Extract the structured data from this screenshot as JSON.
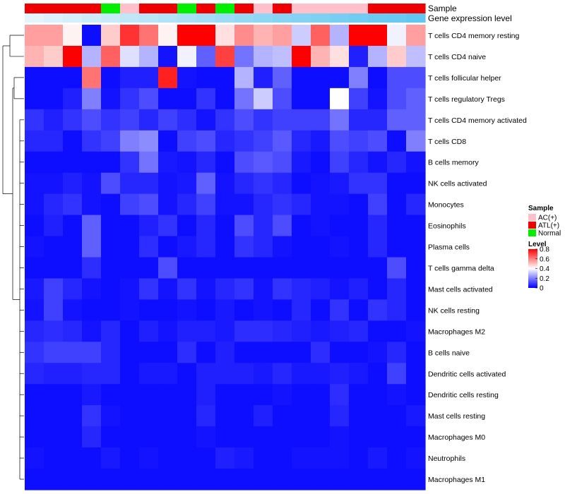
{
  "chart_data": {
    "type": "heatmap",
    "title": "",
    "annotations": {
      "sample_label": "Sample",
      "expression_label": "Gene expression level",
      "sample_codes": [
        1,
        1,
        1,
        1,
        2,
        0,
        1,
        1,
        2,
        1,
        2,
        1,
        0,
        1,
        0,
        0,
        0,
        0,
        1,
        1,
        1
      ],
      "expression_levels": [
        0.05,
        0.1,
        0.15,
        0.2,
        0.25,
        0.3,
        0.35,
        0.4,
        0.45,
        0.5,
        0.55,
        0.6,
        0.65,
        0.7,
        0.72,
        0.75,
        0.8,
        0.85,
        0.88,
        0.9,
        0.95
      ]
    },
    "sample_legend": {
      "title": "Sample",
      "entries": [
        "AC(+)",
        "ATL(+)",
        "Normal"
      ],
      "colors": [
        "#ffc0cb",
        "#ee0000",
        "#00ee00"
      ]
    },
    "level_legend": {
      "title": "Level",
      "ticks": [
        "0.8",
        "0.6",
        "0.4",
        "0.2",
        "0"
      ],
      "tick_values": [
        0.8,
        0.6,
        0.4,
        0.2,
        0.0
      ],
      "range": [
        0,
        0.8
      ],
      "colors": {
        "low": "#0000ff",
        "mid": "#ffffff",
        "high": "#ff0000"
      }
    },
    "expression_colors": {
      "low": "#eaf6fc",
      "high": "#5bc4ef"
    },
    "rows": [
      "T cells CD4 memory resting",
      "T cells CD4 naive",
      "T cells follicular helper",
      "T cells regulatory  Tregs",
      "T cells CD4 memory activated",
      "T cells CD8",
      "B cells memory",
      "NK cells activated",
      "Monocytes",
      "Eosinophils",
      "Plasma cells",
      "T cells gamma delta",
      "Mast cells activated",
      "NK cells resting",
      "Macrophages M2",
      "B cells naive",
      "Dendritic cells activated",
      "Dendritic cells resting",
      "Mast cells resting",
      "Macrophages M0",
      "Neutrophils",
      "Macrophages M1"
    ],
    "values": [
      [
        0.55,
        0.55,
        0.42,
        0.02,
        0.48,
        0.72,
        0.62,
        0.42,
        0.8,
        0.8,
        0.45,
        0.58,
        0.52,
        0.55,
        0.32,
        0.65,
        0.28,
        0.8,
        0.8,
        0.38,
        0.55
      ],
      [
        0.52,
        0.48,
        0.8,
        0.28,
        0.65,
        0.35,
        0.28,
        0.03,
        0.38,
        0.15,
        0.7,
        0.18,
        0.28,
        0.3,
        0.8,
        0.52,
        0.45,
        0.05,
        0.28,
        0.48,
        0.3
      ],
      [
        0.02,
        0.02,
        0.02,
        0.62,
        0.02,
        0.05,
        0.05,
        0.75,
        0.03,
        0.02,
        0.02,
        0.28,
        0.05,
        0.15,
        0.02,
        0.02,
        0.02,
        0.2,
        0.02,
        0.12,
        0.12
      ],
      [
        0.02,
        0.02,
        0.05,
        0.2,
        0.03,
        0.08,
        0.12,
        0.02,
        0.02,
        0.08,
        0.02,
        0.18,
        0.32,
        0.12,
        0.02,
        0.02,
        0.4,
        0.1,
        0.03,
        0.12,
        0.15
      ],
      [
        0.08,
        0.05,
        0.08,
        0.12,
        0.08,
        0.1,
        0.06,
        0.1,
        0.07,
        0.03,
        0.08,
        0.12,
        0.08,
        0.1,
        0.1,
        0.1,
        0.18,
        0.06,
        0.06,
        0.15,
        0.15
      ],
      [
        0.06,
        0.06,
        0.02,
        0.08,
        0.1,
        0.2,
        0.22,
        0.02,
        0.1,
        0.12,
        0.06,
        0.08,
        0.1,
        0.14,
        0.06,
        0.04,
        0.12,
        0.1,
        0.12,
        0.02,
        0.2
      ],
      [
        0.02,
        0.02,
        0.02,
        0.02,
        0.02,
        0.08,
        0.18,
        0.04,
        0.03,
        0.06,
        0.02,
        0.12,
        0.14,
        0.12,
        0.04,
        0.02,
        0.1,
        0.06,
        0.03,
        0.06,
        0.03
      ],
      [
        0.03,
        0.03,
        0.05,
        0.03,
        0.12,
        0.06,
        0.06,
        0.03,
        0.04,
        0.15,
        0.03,
        0.06,
        0.08,
        0.06,
        0.02,
        0.03,
        0.04,
        0.08,
        0.08,
        0.02,
        0.02
      ],
      [
        0.03,
        0.06,
        0.08,
        0.03,
        0.02,
        0.1,
        0.12,
        0.03,
        0.06,
        0.1,
        0.03,
        0.03,
        0.06,
        0.08,
        0.06,
        0.03,
        0.03,
        0.02,
        0.1,
        0.02,
        0.06
      ],
      [
        0.02,
        0.05,
        0.02,
        0.15,
        0.02,
        0.02,
        0.05,
        0.08,
        0.02,
        0.06,
        0.02,
        0.12,
        0.06,
        0.12,
        0.02,
        0.03,
        0.02,
        0.02,
        0.06,
        0.02,
        0.02
      ],
      [
        0.03,
        0.02,
        0.02,
        0.15,
        0.02,
        0.02,
        0.07,
        0.02,
        0.04,
        0.06,
        0.02,
        0.08,
        0.06,
        0.03,
        0.02,
        0.02,
        0.03,
        0.02,
        0.06,
        0.02,
        0.02
      ],
      [
        0.02,
        0.02,
        0.02,
        0.07,
        0.02,
        0.02,
        0.02,
        0.12,
        0.02,
        0.02,
        0.02,
        0.02,
        0.02,
        0.02,
        0.02,
        0.02,
        0.02,
        0.02,
        0.02,
        0.12,
        0.02
      ],
      [
        0.04,
        0.1,
        0.06,
        0.03,
        0.02,
        0.03,
        0.08,
        0.03,
        0.08,
        0.03,
        0.06,
        0.08,
        0.03,
        0.08,
        0.06,
        0.05,
        0.03,
        0.05,
        0.02,
        0.06,
        0.02
      ],
      [
        0.03,
        0.1,
        0.03,
        0.02,
        0.02,
        0.03,
        0.02,
        0.02,
        0.03,
        0.02,
        0.04,
        0.02,
        0.03,
        0.02,
        0.06,
        0.02,
        0.08,
        0.02,
        0.08,
        0.06,
        0.02
      ],
      [
        0.06,
        0.07,
        0.06,
        0.03,
        0.06,
        0.02,
        0.05,
        0.03,
        0.05,
        0.05,
        0.04,
        0.07,
        0.07,
        0.06,
        0.05,
        0.04,
        0.05,
        0.06,
        0.02,
        0.02,
        0.03
      ],
      [
        0.08,
        0.1,
        0.1,
        0.1,
        0.06,
        0.02,
        0.02,
        0.02,
        0.07,
        0.02,
        0.05,
        0.02,
        0.02,
        0.02,
        0.02,
        0.07,
        0.02,
        0.02,
        0.03,
        0.06,
        0.02
      ],
      [
        0.06,
        0.05,
        0.05,
        0.06,
        0.06,
        0.02,
        0.04,
        0.04,
        0.02,
        0.05,
        0.05,
        0.05,
        0.04,
        0.06,
        0.04,
        0.04,
        0.05,
        0.04,
        0.02,
        0.1,
        0.02
      ],
      [
        0.02,
        0.02,
        0.02,
        0.04,
        0.02,
        0.02,
        0.02,
        0.02,
        0.02,
        0.05,
        0.02,
        0.02,
        0.02,
        0.03,
        0.02,
        0.02,
        0.07,
        0.02,
        0.02,
        0.03,
        0.02
      ],
      [
        0.02,
        0.02,
        0.02,
        0.08,
        0.03,
        0.02,
        0.02,
        0.02,
        0.02,
        0.06,
        0.02,
        0.02,
        0.05,
        0.02,
        0.02,
        0.02,
        0.06,
        0.02,
        0.02,
        0.02,
        0.04
      ],
      [
        0.02,
        0.02,
        0.02,
        0.06,
        0.02,
        0.02,
        0.02,
        0.02,
        0.02,
        0.03,
        0.02,
        0.02,
        0.02,
        0.02,
        0.02,
        0.02,
        0.03,
        0.02,
        0.02,
        0.02,
        0.02
      ],
      [
        0.03,
        0.02,
        0.02,
        0.02,
        0.04,
        0.02,
        0.03,
        0.02,
        0.02,
        0.02,
        0.05,
        0.04,
        0.02,
        0.02,
        0.03,
        0.03,
        0.03,
        0.02,
        0.04,
        0.02,
        0.03
      ],
      [
        0.02,
        0.02,
        0.02,
        0.02,
        0.02,
        0.02,
        0.02,
        0.02,
        0.02,
        0.02,
        0.02,
        0.02,
        0.02,
        0.02,
        0.02,
        0.02,
        0.02,
        0.02,
        0.02,
        0.02,
        0.02
      ]
    ]
  }
}
